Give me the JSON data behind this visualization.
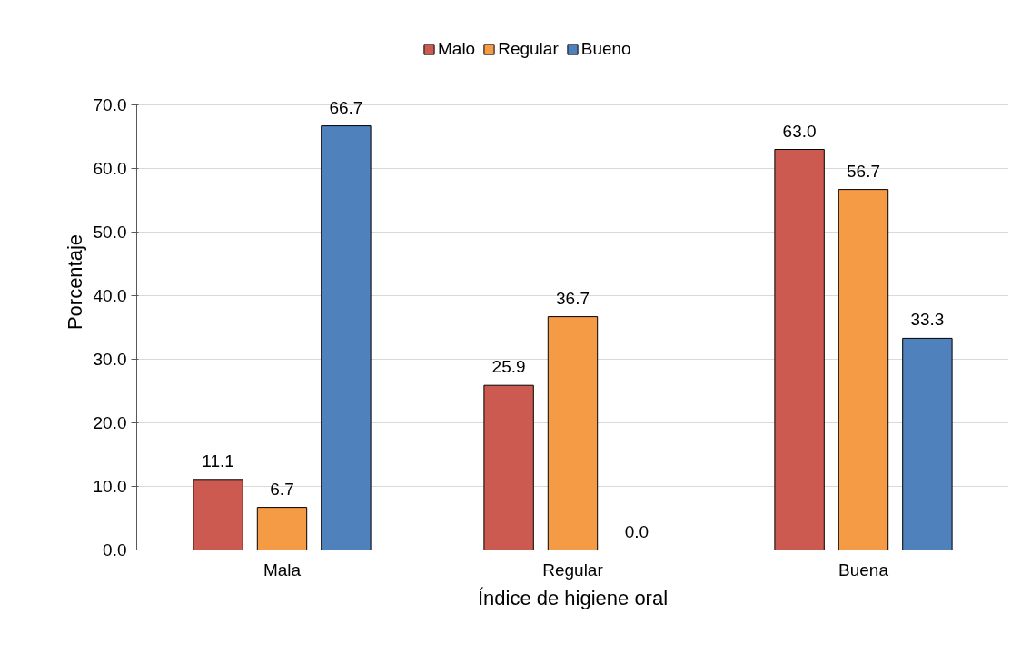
{
  "chart_data": {
    "type": "bar",
    "xlabel": "Índice de higiene oral",
    "ylabel": "Porcentaje",
    "categories": [
      "Mala",
      "Regular",
      "Buena"
    ],
    "series": [
      {
        "name": "Malo",
        "color": "#cd5a50",
        "values": [
          11.1,
          25.9,
          63.0
        ],
        "value_labels": [
          "11.1",
          "25.9",
          "63.0"
        ]
      },
      {
        "name": "Regular",
        "color": "#f59a45",
        "values": [
          6.7,
          36.7,
          56.7
        ],
        "value_labels": [
          "6.7",
          "36.7",
          "56.7"
        ]
      },
      {
        "name": "Bueno",
        "color": "#4f81bd",
        "values": [
          66.7,
          0.0,
          33.3
        ],
        "value_labels": [
          "66.7",
          "0.0",
          "33.3"
        ]
      }
    ],
    "ylim": [
      0,
      70
    ],
    "yticks": [
      {
        "value": 0,
        "label": "0.0"
      },
      {
        "value": 10,
        "label": "10.0"
      },
      {
        "value": 20,
        "label": "20.0"
      },
      {
        "value": 30,
        "label": "30.0"
      },
      {
        "value": 40,
        "label": "40.0"
      },
      {
        "value": 50,
        "label": "50.0"
      },
      {
        "value": 60,
        "label": "60.0"
      },
      {
        "value": 70,
        "label": "70.0"
      }
    ],
    "grid": "y",
    "legend": "top"
  }
}
